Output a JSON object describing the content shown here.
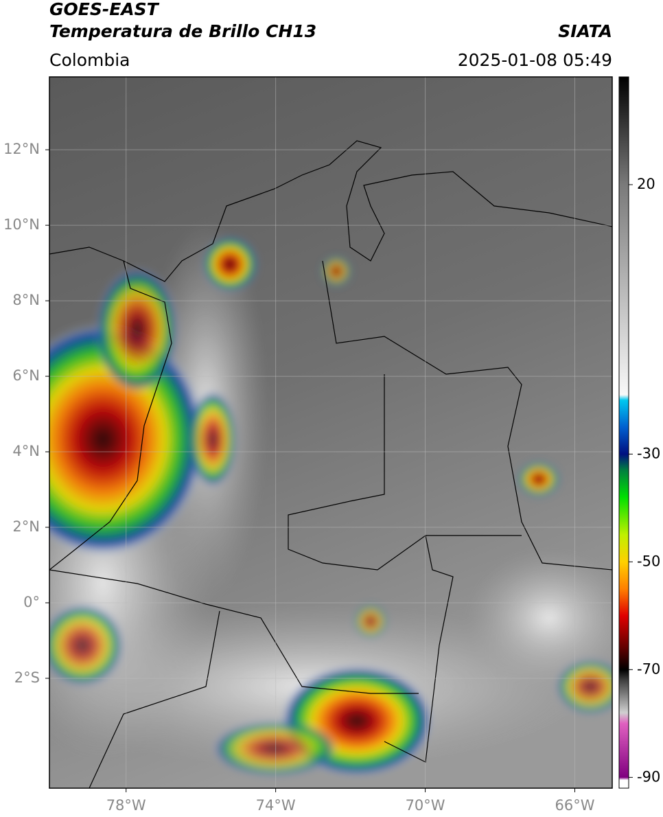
{
  "header": {
    "title": "GOES-EAST",
    "subtitle": "Temperatura de Brillo CH13",
    "source": "SIATA",
    "region": "Colombia",
    "datetime": "2025-01-08 05:49"
  },
  "map": {
    "lonlim": [
      -80.05,
      -65
    ],
    "latlim": [
      -4.91,
      13.93
    ],
    "lon_ticks": [
      {
        "value": -78,
        "label": "78°W"
      },
      {
        "value": -74,
        "label": "74°W"
      },
      {
        "value": -70,
        "label": "70°W"
      },
      {
        "value": -66,
        "label": "66°W"
      }
    ],
    "lat_ticks": [
      {
        "value": 12,
        "label": "12°N"
      },
      {
        "value": 10,
        "label": "10°N"
      },
      {
        "value": 8,
        "label": "8°N"
      },
      {
        "value": 6,
        "label": "6°N"
      },
      {
        "value": 4,
        "label": "4°N"
      },
      {
        "value": 2,
        "label": "2°N"
      },
      {
        "value": 0,
        "label": "0°"
      },
      {
        "value": -2,
        "label": "2°S"
      }
    ],
    "grid": true
  },
  "colorbar": {
    "clim": [
      -92,
      40
    ],
    "ticks": [
      20,
      -30,
      -50,
      -70,
      -90
    ],
    "colormap": [
      {
        "value": 40,
        "color": "#000000"
      },
      {
        "value": 20,
        "color": "#7a7a7a"
      },
      {
        "value": -19,
        "color": "#f8f8f8"
      },
      {
        "value": -20,
        "color": "#00c8f0"
      },
      {
        "value": -25,
        "color": "#0060d0"
      },
      {
        "value": -30,
        "color": "#001080"
      },
      {
        "value": -33,
        "color": "#008040"
      },
      {
        "value": -38,
        "color": "#00e000"
      },
      {
        "value": -45,
        "color": "#c0f000"
      },
      {
        "value": -50,
        "color": "#ffd000"
      },
      {
        "value": -55,
        "color": "#ff8000"
      },
      {
        "value": -60,
        "color": "#e00000"
      },
      {
        "value": -66,
        "color": "#600000"
      },
      {
        "value": -70,
        "color": "#000000"
      },
      {
        "value": -72,
        "color": "#404040"
      },
      {
        "value": -78,
        "color": "#d0d0d0"
      },
      {
        "value": -80,
        "color": "#e060c0"
      },
      {
        "value": -90,
        "color": "#800080"
      },
      {
        "value": -90.5,
        "color": "#ffffff"
      },
      {
        "value": -92,
        "color": "#ffffff"
      }
    ]
  }
}
